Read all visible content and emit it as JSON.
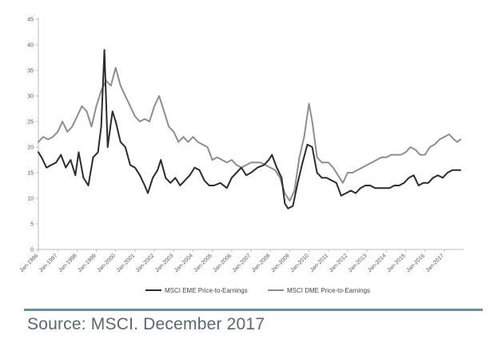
{
  "source_text": "Source: MSCI. December 2017",
  "colors": {
    "eme": "#2b2b2b",
    "dme": "#8e8e8e",
    "rule": "#6f8fa3",
    "axis": "#bdbdbd"
  },
  "chart_data": {
    "type": "line",
    "title": "",
    "xlabel": "",
    "ylabel": "",
    "ylim": [
      0,
      45
    ],
    "yticks": [
      0,
      5,
      10,
      15,
      20,
      25,
      30,
      35,
      40,
      45
    ],
    "xticks": [
      "Jan-1996",
      "Jan-1997",
      "Jan-1998",
      "Jan-1999",
      "Jan-2000",
      "Jan-2001",
      "Jan-2002",
      "Jan-2003",
      "Jan-2004",
      "Jan-2005",
      "Jan-2006",
      "Jan-2007",
      "Jan-2008",
      "Jan-2009",
      "Jan-2010",
      "Jan-2011",
      "Jan-2012",
      "Jan-2013",
      "Jan-2014",
      "Jan-2015",
      "Jan-2016",
      "Jan-2017"
    ],
    "grid": false,
    "legend_position": "bottom",
    "series": [
      {
        "name": "MSCI EME Price-to-Earnings",
        "color": "#2b2b2b",
        "points": [
          [
            "1996-01",
            19
          ],
          [
            "1996-03",
            18
          ],
          [
            "1996-06",
            16
          ],
          [
            "1996-09",
            16.5
          ],
          [
            "1996-12",
            17
          ],
          [
            "1997-03",
            18.5
          ],
          [
            "1997-06",
            16
          ],
          [
            "1997-09",
            17.5
          ],
          [
            "1997-12",
            14.5
          ],
          [
            "1998-02",
            19
          ],
          [
            "1998-05",
            14
          ],
          [
            "1998-08",
            12.5
          ],
          [
            "1998-11",
            18
          ],
          [
            "1999-02",
            19
          ],
          [
            "1999-04",
            24
          ],
          [
            "1999-06",
            39
          ],
          [
            "1999-08",
            20
          ],
          [
            "1999-11",
            27
          ],
          [
            "2000-01",
            25
          ],
          [
            "2000-04",
            21
          ],
          [
            "2000-07",
            20
          ],
          [
            "2000-10",
            16.5
          ],
          [
            "2001-01",
            16
          ],
          [
            "2001-04",
            14.5
          ],
          [
            "2001-07",
            12.5
          ],
          [
            "2001-09",
            11
          ],
          [
            "2001-12",
            14
          ],
          [
            "2002-03",
            15.5
          ],
          [
            "2002-05",
            17.5
          ],
          [
            "2002-08",
            14
          ],
          [
            "2002-11",
            13
          ],
          [
            "2003-02",
            14
          ],
          [
            "2003-05",
            12.5
          ],
          [
            "2003-08",
            13.5
          ],
          [
            "2003-11",
            14.5
          ],
          [
            "2004-02",
            16
          ],
          [
            "2004-05",
            15.5
          ],
          [
            "2004-08",
            13.5
          ],
          [
            "2004-11",
            12.5
          ],
          [
            "2005-02",
            12.5
          ],
          [
            "2005-06",
            13
          ],
          [
            "2005-10",
            12
          ],
          [
            "2006-01",
            14
          ],
          [
            "2006-04",
            15
          ],
          [
            "2006-07",
            16
          ],
          [
            "2006-10",
            14.5
          ],
          [
            "2007-01",
            15
          ],
          [
            "2007-05",
            16
          ],
          [
            "2007-09",
            16.5
          ],
          [
            "2007-12",
            17.5
          ],
          [
            "2008-02",
            18.5
          ],
          [
            "2008-05",
            16
          ],
          [
            "2008-08",
            14
          ],
          [
            "2008-10",
            9
          ],
          [
            "2008-12",
            8
          ],
          [
            "2009-03",
            8.5
          ],
          [
            "2009-06",
            13
          ],
          [
            "2009-09",
            17
          ],
          [
            "2009-12",
            20.5
          ],
          [
            "2010-03",
            20
          ],
          [
            "2010-06",
            15
          ],
          [
            "2010-09",
            14
          ],
          [
            "2010-12",
            14
          ],
          [
            "2011-03",
            13.5
          ],
          [
            "2011-06",
            13
          ],
          [
            "2011-09",
            10.5
          ],
          [
            "2011-12",
            11
          ],
          [
            "2012-03",
            11.5
          ],
          [
            "2012-06",
            11
          ],
          [
            "2012-09",
            12
          ],
          [
            "2012-12",
            12.5
          ],
          [
            "2013-03",
            12.5
          ],
          [
            "2013-06",
            12
          ],
          [
            "2013-09",
            12
          ],
          [
            "2013-12",
            12
          ],
          [
            "2014-03",
            12
          ],
          [
            "2014-06",
            12.5
          ],
          [
            "2014-09",
            12.5
          ],
          [
            "2014-12",
            13
          ],
          [
            "2015-03",
            14
          ],
          [
            "2015-06",
            14.5
          ],
          [
            "2015-09",
            12.5
          ],
          [
            "2015-12",
            13
          ],
          [
            "2016-03",
            13
          ],
          [
            "2016-06",
            14
          ],
          [
            "2016-09",
            14.5
          ],
          [
            "2016-12",
            14
          ],
          [
            "2017-03",
            15
          ],
          [
            "2017-06",
            15.5
          ],
          [
            "2017-09",
            15.5
          ],
          [
            "2017-11",
            15.5
          ]
        ]
      },
      {
        "name": "MSCI DME Price-to-Earnings",
        "color": "#8e8e8e",
        "points": [
          [
            "1996-01",
            21
          ],
          [
            "1996-04",
            22
          ],
          [
            "1996-07",
            21.5
          ],
          [
            "1996-10",
            22
          ],
          [
            "1997-01",
            23
          ],
          [
            "1997-04",
            25
          ],
          [
            "1997-07",
            23
          ],
          [
            "1997-10",
            24
          ],
          [
            "1998-01",
            26
          ],
          [
            "1998-04",
            28
          ],
          [
            "1998-07",
            27
          ],
          [
            "1998-10",
            24
          ],
          [
            "1999-01",
            28
          ],
          [
            "1999-04",
            31
          ],
          [
            "1999-07",
            33
          ],
          [
            "1999-10",
            32
          ],
          [
            "2000-01",
            35.5
          ],
          [
            "2000-04",
            32
          ],
          [
            "2000-07",
            30
          ],
          [
            "2000-10",
            28
          ],
          [
            "2001-01",
            26
          ],
          [
            "2001-04",
            25
          ],
          [
            "2001-07",
            25.5
          ],
          [
            "2001-10",
            25
          ],
          [
            "2002-01",
            28
          ],
          [
            "2002-04",
            30
          ],
          [
            "2002-07",
            27
          ],
          [
            "2002-10",
            24
          ],
          [
            "2003-01",
            23
          ],
          [
            "2003-04",
            21
          ],
          [
            "2003-07",
            22
          ],
          [
            "2003-10",
            21
          ],
          [
            "2004-01",
            22
          ],
          [
            "2004-04",
            21
          ],
          [
            "2004-07",
            20.5
          ],
          [
            "2004-10",
            20
          ],
          [
            "2005-01",
            17.5
          ],
          [
            "2005-04",
            18
          ],
          [
            "2005-07",
            17.5
          ],
          [
            "2005-10",
            17
          ],
          [
            "2006-01",
            17.5
          ],
          [
            "2006-04",
            16.5
          ],
          [
            "2006-07",
            16
          ],
          [
            "2006-10",
            16.5
          ],
          [
            "2007-01",
            17
          ],
          [
            "2007-04",
            17
          ],
          [
            "2007-07",
            17
          ],
          [
            "2007-10",
            16.5
          ],
          [
            "2008-01",
            16
          ],
          [
            "2008-04",
            15.5
          ],
          [
            "2008-07",
            14
          ],
          [
            "2008-10",
            11
          ],
          [
            "2009-01",
            9.5
          ],
          [
            "2009-04",
            11.5
          ],
          [
            "2009-07",
            18
          ],
          [
            "2009-10",
            22
          ],
          [
            "2010-01",
            28.5
          ],
          [
            "2010-03",
            25
          ],
          [
            "2010-06",
            18
          ],
          [
            "2010-09",
            17
          ],
          [
            "2011-01",
            17
          ],
          [
            "2011-04",
            16
          ],
          [
            "2011-07",
            14.5
          ],
          [
            "2011-10",
            13
          ],
          [
            "2012-01",
            15
          ],
          [
            "2012-04",
            15
          ],
          [
            "2012-07",
            15.5
          ],
          [
            "2012-10",
            16
          ],
          [
            "2013-01",
            16.5
          ],
          [
            "2013-04",
            17
          ],
          [
            "2013-07",
            17.5
          ],
          [
            "2013-10",
            18
          ],
          [
            "2014-01",
            18
          ],
          [
            "2014-04",
            18.5
          ],
          [
            "2014-07",
            18.5
          ],
          [
            "2014-10",
            18.5
          ],
          [
            "2015-01",
            19
          ],
          [
            "2015-04",
            20
          ],
          [
            "2015-07",
            19.5
          ],
          [
            "2015-10",
            18.5
          ],
          [
            "2016-01",
            18.5
          ],
          [
            "2016-04",
            20
          ],
          [
            "2016-07",
            20.5
          ],
          [
            "2016-10",
            21.5
          ],
          [
            "2017-01",
            22
          ],
          [
            "2017-04",
            22.5
          ],
          [
            "2017-07",
            21.5
          ],
          [
            "2017-09",
            21
          ],
          [
            "2017-11",
            21.5
          ]
        ]
      }
    ]
  }
}
